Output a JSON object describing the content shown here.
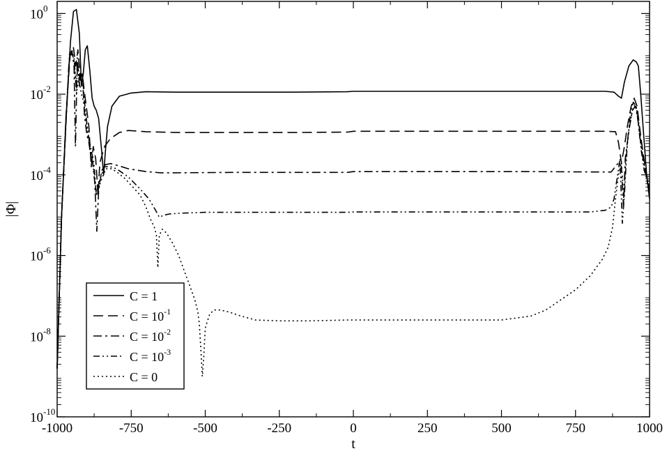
{
  "chart_data": {
    "type": "line",
    "title": "",
    "xlabel": "t",
    "ylabel": "|Φ|",
    "xlim": [
      -1000,
      1000
    ],
    "ylim_log10": [
      -10,
      0.3
    ],
    "log_y": true,
    "grid": false,
    "legend_position": "bottom-left",
    "x_ticks": [
      "-1000",
      "-750",
      "-500",
      "-250",
      "0",
      "250",
      "500",
      "750",
      "1000"
    ],
    "x_tick_values": [
      -1000,
      -750,
      -500,
      -250,
      0,
      250,
      500,
      750,
      1000
    ],
    "y_ticks": [
      {
        "base": "10",
        "exp": "0",
        "value": 0
      },
      {
        "base": "10",
        "exp": "-2",
        "value": -2
      },
      {
        "base": "10",
        "exp": "-4",
        "value": -4
      },
      {
        "base": "10",
        "exp": "-6",
        "value": -6
      },
      {
        "base": "10",
        "exp": "-8",
        "value": -8
      },
      {
        "base": "10",
        "exp": "-10",
        "value": -10
      }
    ],
    "series": [
      {
        "name": "C = 1",
        "name_base": "C = 1",
        "name_exp": "",
        "dash": "solid",
        "points": [
          [
            -1000,
            -8.8
          ],
          [
            -985,
            -5
          ],
          [
            -970,
            -2.6
          ],
          [
            -955,
            -0.7
          ],
          [
            -945,
            0.05
          ],
          [
            -935,
            0.1
          ],
          [
            -925,
            -0.5
          ],
          [
            -918,
            -1.8
          ],
          [
            -912,
            -1.5
          ],
          [
            -905,
            -0.9
          ],
          [
            -898,
            -0.8
          ],
          [
            -890,
            -1.4
          ],
          [
            -882,
            -2.1
          ],
          [
            -875,
            -2.3
          ],
          [
            -868,
            -2.4
          ],
          [
            -860,
            -2.6
          ],
          [
            -850,
            -3.4
          ],
          [
            -843,
            -4
          ],
          [
            -837,
            -3.4
          ],
          [
            -830,
            -2.8
          ],
          [
            -815,
            -2.3
          ],
          [
            -790,
            -2.05
          ],
          [
            -750,
            -1.97
          ],
          [
            -700,
            -1.94
          ],
          [
            -600,
            -1.95
          ],
          [
            -400,
            -1.95
          ],
          [
            -200,
            -1.95
          ],
          [
            -20,
            -1.94
          ],
          [
            0,
            -1.93
          ],
          [
            100,
            -1.93
          ],
          [
            300,
            -1.93
          ],
          [
            600,
            -1.93
          ],
          [
            850,
            -1.93
          ],
          [
            880,
            -1.95
          ],
          [
            895,
            -2.05
          ],
          [
            905,
            -2.1
          ],
          [
            915,
            -1.7
          ],
          [
            930,
            -1.3
          ],
          [
            945,
            -1.15
          ],
          [
            955,
            -1.2
          ],
          [
            962,
            -1.3
          ],
          [
            970,
            -2
          ],
          [
            980,
            -3
          ],
          [
            990,
            -4
          ],
          [
            1000,
            -4.6
          ]
        ]
      },
      {
        "name": "C = 10^-1",
        "name_base": "C = 10",
        "name_exp": "-1",
        "dash": "long",
        "points": [
          [
            -1000,
            -8.8
          ],
          [
            -985,
            -5
          ],
          [
            -970,
            -2.5
          ],
          [
            -955,
            -0.9
          ],
          [
            -945,
            -0.85
          ],
          [
            -937,
            -1.3
          ],
          [
            -930,
            -0.9
          ],
          [
            -922,
            -1.6
          ],
          [
            -915,
            -1.5
          ],
          [
            -907,
            -2.0
          ],
          [
            -900,
            -2.4
          ],
          [
            -893,
            -2.8
          ],
          [
            -885,
            -3.8
          ],
          [
            -878,
            -3.3
          ],
          [
            -870,
            -3.6
          ],
          [
            -862,
            -4.5
          ],
          [
            -856,
            -3.7
          ],
          [
            -848,
            -3.5
          ],
          [
            -840,
            -3.3
          ],
          [
            -820,
            -3.1
          ],
          [
            -790,
            -2.95
          ],
          [
            -760,
            -2.9
          ],
          [
            -700,
            -2.93
          ],
          [
            -600,
            -2.95
          ],
          [
            -400,
            -2.95
          ],
          [
            -200,
            -2.95
          ],
          [
            -20,
            -2.94
          ],
          [
            0,
            -2.92
          ],
          [
            100,
            -2.92
          ],
          [
            300,
            -2.92
          ],
          [
            600,
            -2.92
          ],
          [
            850,
            -2.92
          ],
          [
            885,
            -2.93
          ],
          [
            895,
            -3.2
          ],
          [
            905,
            -3.7
          ],
          [
            915,
            -3.3
          ],
          [
            925,
            -2.8
          ],
          [
            938,
            -2.3
          ],
          [
            948,
            -2.1
          ],
          [
            958,
            -2.3
          ],
          [
            966,
            -2.8
          ],
          [
            975,
            -3.3
          ],
          [
            985,
            -3.8
          ],
          [
            1000,
            -4.5
          ]
        ]
      },
      {
        "name": "C = 10^-2",
        "name_base": "C = 10",
        "name_exp": "-2",
        "dash": "dashdot",
        "points": [
          [
            -1000,
            -8.8
          ],
          [
            -985,
            -5
          ],
          [
            -970,
            -2.7
          ],
          [
            -960,
            -1.2
          ],
          [
            -950,
            -0.95
          ],
          [
            -943,
            -1.3
          ],
          [
            -938,
            -3.3
          ],
          [
            -932,
            -1.1
          ],
          [
            -925,
            -1.8
          ],
          [
            -915,
            -1.5
          ],
          [
            -908,
            -2.5
          ],
          [
            -900,
            -3
          ],
          [
            -893,
            -3.2
          ],
          [
            -887,
            -3.5
          ],
          [
            -880,
            -3.7
          ],
          [
            -873,
            -4.2
          ],
          [
            -866,
            -5.4
          ],
          [
            -860,
            -4.4
          ],
          [
            -850,
            -3.9
          ],
          [
            -838,
            -3.75
          ],
          [
            -820,
            -3.72
          ],
          [
            -790,
            -3.78
          ],
          [
            -760,
            -3.85
          ],
          [
            -700,
            -3.92
          ],
          [
            -650,
            -3.95
          ],
          [
            -600,
            -3.95
          ],
          [
            -400,
            -3.94
          ],
          [
            -200,
            -3.94
          ],
          [
            -20,
            -3.94
          ],
          [
            0,
            -3.92
          ],
          [
            100,
            -3.92
          ],
          [
            300,
            -3.92
          ],
          [
            600,
            -3.92
          ],
          [
            870,
            -3.93
          ],
          [
            895,
            -3.7
          ],
          [
            905,
            -3.8
          ],
          [
            912,
            -4.8
          ],
          [
            918,
            -3.6
          ],
          [
            930,
            -2.9
          ],
          [
            942,
            -2.4
          ],
          [
            952,
            -2.3
          ],
          [
            960,
            -2.6
          ],
          [
            968,
            -3.1
          ],
          [
            978,
            -3.6
          ],
          [
            988,
            -4.0
          ],
          [
            1000,
            -4.5
          ]
        ]
      },
      {
        "name": "C = 10^-3",
        "name_base": "C = 10",
        "name_exp": "-3",
        "dash": "dashdotdot",
        "points": [
          [
            -1000,
            -8.8
          ],
          [
            -985,
            -5
          ],
          [
            -970,
            -2.6
          ],
          [
            -958,
            -1
          ],
          [
            -950,
            -0.92
          ],
          [
            -943,
            -1.1
          ],
          [
            -936,
            -1.8
          ],
          [
            -930,
            -1.3
          ],
          [
            -922,
            -1.7
          ],
          [
            -914,
            -1.6
          ],
          [
            -905,
            -2.4
          ],
          [
            -895,
            -3.0
          ],
          [
            -885,
            -3.4
          ],
          [
            -876,
            -3.7
          ],
          [
            -868,
            -4.5
          ],
          [
            -862,
            -4.3
          ],
          [
            -855,
            -4.1
          ],
          [
            -840,
            -3.8
          ],
          [
            -820,
            -3.8
          ],
          [
            -800,
            -3.85
          ],
          [
            -760,
            -4.05
          ],
          [
            -720,
            -4.35
          ],
          [
            -690,
            -4.6
          ],
          [
            -670,
            -4.85
          ],
          [
            -655,
            -5.05
          ],
          [
            -640,
            -5.0
          ],
          [
            -620,
            -4.97
          ],
          [
            -580,
            -4.95
          ],
          [
            -500,
            -4.93
          ],
          [
            -400,
            -4.93
          ],
          [
            -200,
            -4.93
          ],
          [
            -20,
            -4.93
          ],
          [
            0,
            -4.92
          ],
          [
            100,
            -4.92
          ],
          [
            300,
            -4.92
          ],
          [
            600,
            -4.92
          ],
          [
            800,
            -4.92
          ],
          [
            850,
            -4.88
          ],
          [
            870,
            -4.8
          ],
          [
            880,
            -4.6
          ],
          [
            890,
            -4.1
          ],
          [
            900,
            -3.6
          ],
          [
            908,
            -5.2
          ],
          [
            915,
            -4.5
          ],
          [
            925,
            -3.2
          ],
          [
            935,
            -2.5
          ],
          [
            945,
            -2.2
          ],
          [
            955,
            -2.3
          ],
          [
            963,
            -2.8
          ],
          [
            972,
            -3.4
          ],
          [
            982,
            -3.9
          ],
          [
            992,
            -4.1
          ],
          [
            1000,
            -4.4
          ]
        ]
      },
      {
        "name": "C = 0",
        "name_base": "C = 0",
        "name_exp": "",
        "dash": "dotted",
        "points": [
          [
            -1000,
            -8.8
          ],
          [
            -985,
            -5
          ],
          [
            -970,
            -2.6
          ],
          [
            -958,
            -1.1
          ],
          [
            -950,
            -0.95
          ],
          [
            -942,
            -1.2
          ],
          [
            -935,
            -2
          ],
          [
            -927,
            -1.6
          ],
          [
            -918,
            -2
          ],
          [
            -910,
            -2.2
          ],
          [
            -900,
            -2.8
          ],
          [
            -890,
            -3.3
          ],
          [
            -878,
            -3.8
          ],
          [
            -866,
            -4.5
          ],
          [
            -858,
            -4.3
          ],
          [
            -850,
            -4.1
          ],
          [
            -835,
            -3.85
          ],
          [
            -815,
            -3.85
          ],
          [
            -795,
            -3.95
          ],
          [
            -770,
            -4.1
          ],
          [
            -745,
            -4.3
          ],
          [
            -720,
            -4.5
          ],
          [
            -700,
            -4.8
          ],
          [
            -685,
            -5.1
          ],
          [
            -672,
            -5.3
          ],
          [
            -665,
            -5.5
          ],
          [
            -660,
            -6.3
          ],
          [
            -655,
            -5.5
          ],
          [
            -645,
            -5.35
          ],
          [
            -630,
            -5.45
          ],
          [
            -610,
            -5.7
          ],
          [
            -590,
            -6.0
          ],
          [
            -570,
            -6.4
          ],
          [
            -550,
            -6.8
          ],
          [
            -535,
            -7.1
          ],
          [
            -525,
            -7.4
          ],
          [
            -520,
            -7.7
          ],
          [
            -515,
            -8.3
          ],
          [
            -510,
            -9.0
          ],
          [
            -505,
            -8.5
          ],
          [
            -500,
            -7.8
          ],
          [
            -485,
            -7.45
          ],
          [
            -470,
            -7.35
          ],
          [
            -450,
            -7.35
          ],
          [
            -420,
            -7.4
          ],
          [
            -380,
            -7.5
          ],
          [
            -330,
            -7.6
          ],
          [
            -250,
            -7.62
          ],
          [
            -150,
            -7.62
          ],
          [
            -20,
            -7.6
          ],
          [
            0,
            -7.6
          ],
          [
            100,
            -7.6
          ],
          [
            200,
            -7.6
          ],
          [
            300,
            -7.6
          ],
          [
            400,
            -7.6
          ],
          [
            500,
            -7.6
          ],
          [
            550,
            -7.55
          ],
          [
            600,
            -7.5
          ],
          [
            650,
            -7.35
          ],
          [
            700,
            -7.1
          ],
          [
            750,
            -6.85
          ],
          [
            800,
            -6.5
          ],
          [
            840,
            -6.1
          ],
          [
            860,
            -5.8
          ],
          [
            875,
            -5.3
          ],
          [
            885,
            -4.6
          ],
          [
            895,
            -4.0
          ],
          [
            905,
            -3.7
          ],
          [
            913,
            -4.6
          ],
          [
            920,
            -3.6
          ],
          [
            930,
            -2.9
          ],
          [
            942,
            -2.4
          ],
          [
            952,
            -2.25
          ],
          [
            960,
            -2.5
          ],
          [
            968,
            -3.0
          ],
          [
            978,
            -3.6
          ],
          [
            990,
            -4.0
          ],
          [
            1000,
            -4.3
          ]
        ]
      }
    ]
  }
}
